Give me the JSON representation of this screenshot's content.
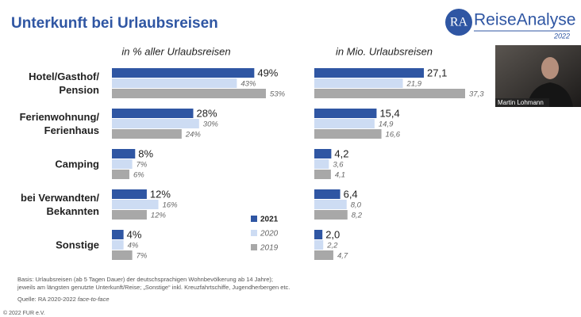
{
  "slide": {
    "title": "Unterkunft bei Urlaubsreisen",
    "logo_mark": "RA",
    "logo_name": "ReiseAnalyse",
    "logo_year": "2022",
    "speaker": "Martin Lohmann",
    "footnotes": [
      "Basis: Urlaubsreisen (ab 5 Tagen Dauer) der deutschsprachigen Wohnbevölkerung ab 14 Jahre);",
      "jeweils am längsten genutzte Unterkunft/Reise; „Sonstige“ inkl. Kreuzfahrtschiffe, Jugendherbergen etc."
    ],
    "source": "Quelle: RA 2020-2022",
    "source_method": "face-to-face",
    "copyright": "© 2022 FUR e.V."
  },
  "chart_data": [
    {
      "type": "hbar",
      "subtitle": "in % aller Urlaubsreisen",
      "categories": [
        "Hotel/Gasthof/\nPension",
        "Ferienwohnung/\nFerienhaus",
        "Camping",
        "bei Verwandten/\nBekannten",
        "Sonstige"
      ],
      "series": [
        {
          "name": "2021",
          "color": "#2f56a3",
          "values": [
            49,
            28,
            8,
            12,
            4
          ],
          "value_labels": [
            "49%",
            "28%",
            "8%",
            "12%",
            "4%"
          ]
        },
        {
          "name": "2020",
          "color": "#cddcf3",
          "values": [
            43,
            30,
            7,
            16,
            4
          ],
          "value_labels": [
            "43%",
            "30%",
            "7%",
            "16%",
            "4%"
          ]
        },
        {
          "name": "2019",
          "color": "#a8a8a8",
          "values": [
            53,
            24,
            6,
            12,
            7
          ],
          "value_labels": [
            "53%",
            "24%",
            "6%",
            "12%",
            "7%"
          ]
        }
      ]
    },
    {
      "type": "hbar",
      "subtitle": "in Mio. Urlaubsreisen",
      "series": [
        {
          "color": "#2f56a3",
          "values": [
            27.1,
            15.4,
            4.2,
            6.4,
            2.0
          ],
          "value_labels": [
            "27,1",
            "15,4",
            "4,2",
            "6,4",
            "2,0"
          ]
        },
        {
          "color": "#cddcf3",
          "values": [
            21.9,
            14.9,
            3.6,
            8.0,
            2.2
          ],
          "value_labels": [
            "21,9",
            "14,9",
            "3,6",
            "8,0",
            "2,2"
          ]
        },
        {
          "color": "#a8a8a8",
          "values": [
            37.3,
            16.6,
            4.1,
            8.2,
            4.7
          ],
          "value_labels": [
            "37,3",
            "16,6",
            "4,1",
            "8,2",
            "4,7"
          ]
        }
      ]
    }
  ]
}
